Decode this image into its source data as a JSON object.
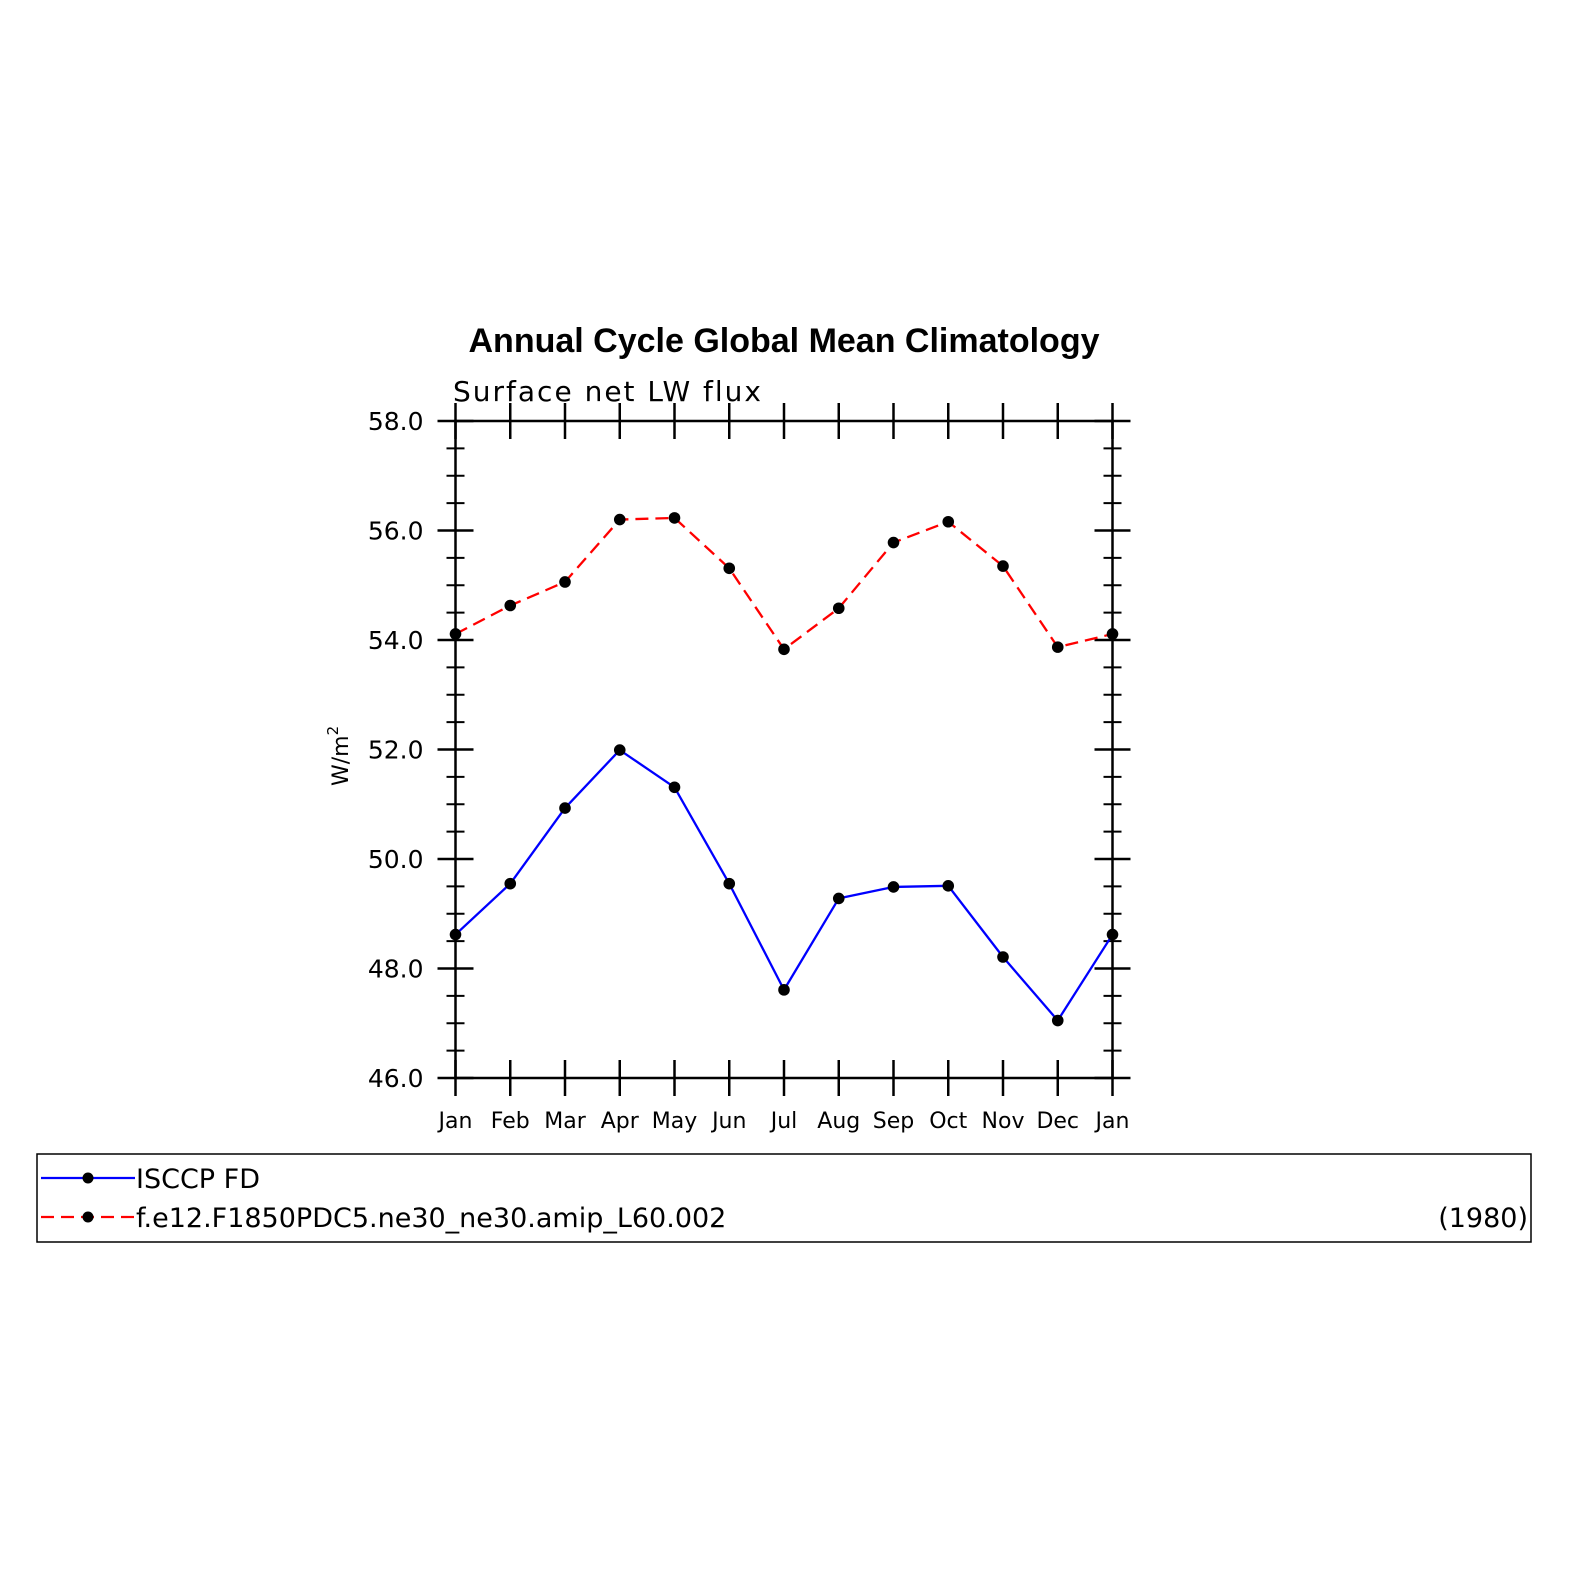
{
  "chart_data": {
    "type": "line",
    "title": "Annual Cycle Global Mean Climatology",
    "subtitle": "Surface net LW flux",
    "ylabel": "W/m",
    "ylabel_sup": "2",
    "xlabel": "",
    "categories": [
      "Jan",
      "Feb",
      "Mar",
      "Apr",
      "May",
      "Jun",
      "Jul",
      "Aug",
      "Sep",
      "Oct",
      "Nov",
      "Dec",
      "Jan"
    ],
    "ylim": [
      46.0,
      58.0
    ],
    "yticks": [
      "46.0",
      "48.0",
      "50.0",
      "52.0",
      "54.0",
      "56.0",
      "58.0"
    ],
    "grid": false,
    "legend_position": "bottom",
    "series": [
      {
        "name": "ISCCP FD",
        "color": "#0000ff",
        "line_style": "solid",
        "values": [
          48.62,
          49.55,
          50.93,
          51.99,
          51.31,
          49.55,
          47.61,
          49.28,
          49.49,
          49.51,
          48.21,
          47.05,
          48.62
        ]
      },
      {
        "name": "f.e12.F1850PDC5.ne30_ne30.amip_L60.002",
        "color": "#ff0000",
        "line_style": "dashed",
        "years": "(1980)",
        "values": [
          54.11,
          54.63,
          55.06,
          56.2,
          56.23,
          55.31,
          53.83,
          54.58,
          55.78,
          56.16,
          55.35,
          53.87,
          54.11
        ]
      }
    ],
    "marker_color": "#000000"
  }
}
